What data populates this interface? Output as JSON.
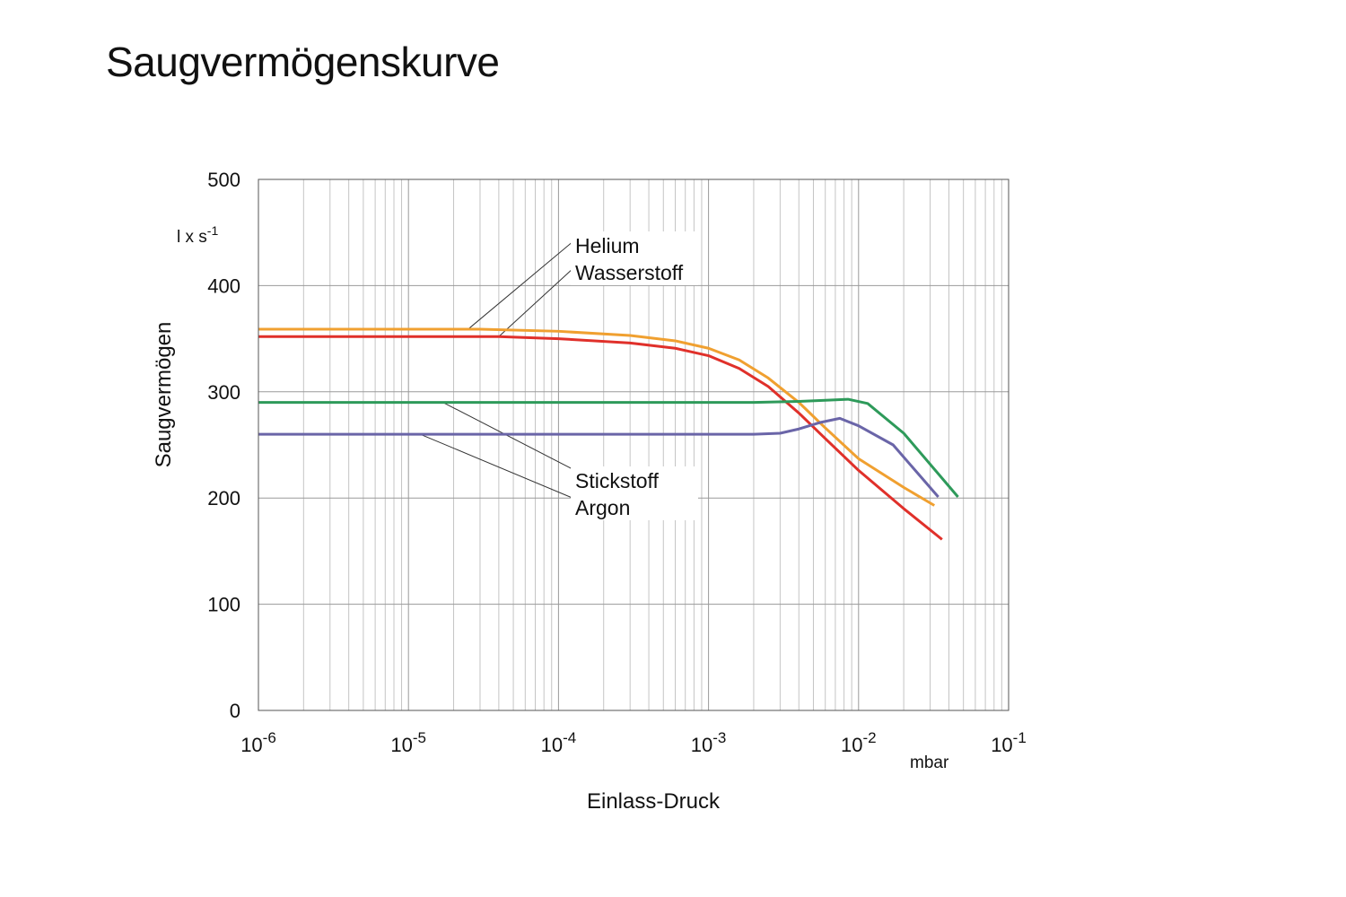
{
  "title": "Saugvermögenskurve",
  "chart_data": {
    "type": "line",
    "x_scale": "log",
    "xlim": [
      1e-06,
      0.1
    ],
    "ylim": [
      0,
      500
    ],
    "grid": true,
    "xlabel": "Einlass-Druck",
    "x_unit": "mbar",
    "ylabel": "Saugvermögen",
    "y_unit": "l x s",
    "y_unit_exponent": "-1",
    "y_ticks": [
      "0",
      "100",
      "200",
      "300",
      "400",
      "500"
    ],
    "x_ticks": [
      {
        "value": 1e-06,
        "base": "10",
        "exp": "-6"
      },
      {
        "value": 1e-05,
        "base": "10",
        "exp": "-5"
      },
      {
        "value": 0.0001,
        "base": "10",
        "exp": "-4"
      },
      {
        "value": 0.001,
        "base": "10",
        "exp": "-3"
      },
      {
        "value": 0.01,
        "base": "10",
        "exp": "-2"
      },
      {
        "value": 0.1,
        "base": "10",
        "exp": "-1"
      }
    ],
    "series": [
      {
        "name": "Helium",
        "color": "#f0a030",
        "label_group": "top",
        "x": [
          1e-06,
          1e-05,
          3e-05,
          0.0001,
          0.0003,
          0.0006,
          0.001,
          0.0016,
          0.0025,
          0.004,
          0.006,
          0.01,
          0.02,
          0.032
        ],
        "y": [
          359,
          359,
          359,
          357,
          353,
          348,
          341,
          330,
          313,
          290,
          266,
          237,
          210,
          193
        ]
      },
      {
        "name": "Wasserstoff",
        "color": "#e0302a",
        "label_group": "top",
        "x": [
          1e-06,
          1e-05,
          4e-05,
          0.0001,
          0.0003,
          0.0006,
          0.001,
          0.0016,
          0.0025,
          0.004,
          0.006,
          0.01,
          0.02,
          0.036
        ],
        "y": [
          352,
          352,
          352,
          350,
          346,
          341,
          334,
          322,
          305,
          280,
          256,
          226,
          190,
          161
        ]
      },
      {
        "name": "Stickstoff",
        "color": "#2e9a5a",
        "label_group": "bottom",
        "x": [
          1e-06,
          0.0001,
          0.001,
          0.002,
          0.004,
          0.006,
          0.0085,
          0.0115,
          0.02,
          0.046
        ],
        "y": [
          290,
          290,
          290,
          290,
          291,
          292,
          293,
          289,
          261,
          201
        ]
      },
      {
        "name": "Argon",
        "color": "#6a65a8",
        "label_group": "bottom",
        "x": [
          1e-06,
          0.0001,
          0.001,
          0.002,
          0.003,
          0.004,
          0.0055,
          0.0075,
          0.01,
          0.017,
          0.034
        ],
        "y": [
          260,
          260,
          260,
          260,
          261,
          265,
          271,
          275,
          268,
          250,
          201
        ]
      }
    ]
  }
}
